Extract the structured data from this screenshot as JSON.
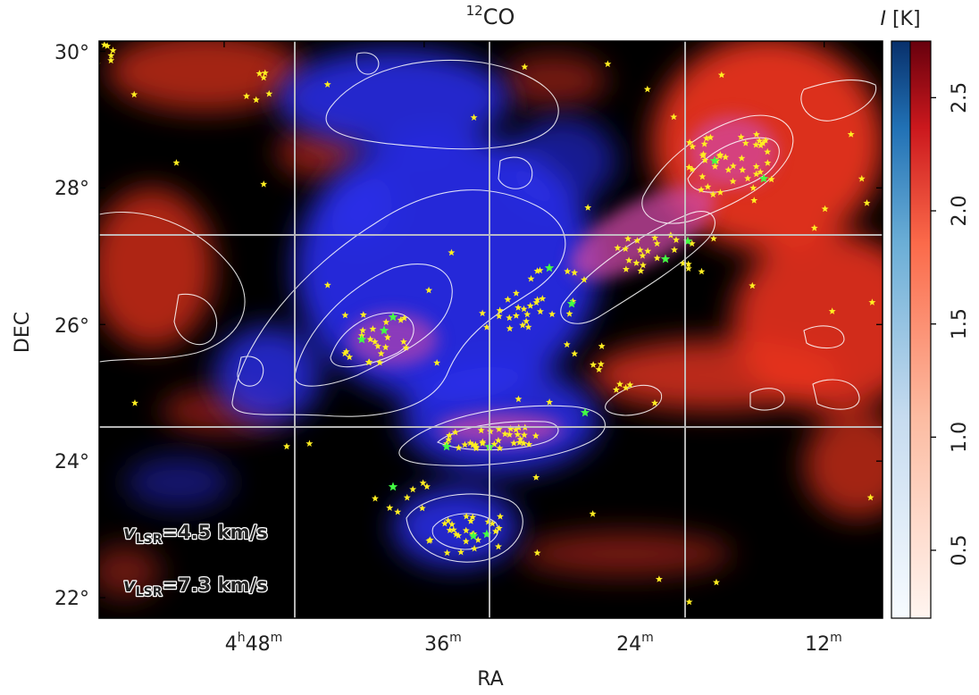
{
  "chart_data": {
    "type": "heatmap",
    "title_sup": "12",
    "title": "CO",
    "xlabel": "RA",
    "ylabel": "DEC",
    "x_ticks": [
      {
        "label": "4",
        "sup1": "h",
        "label2": "48",
        "sup2": "m",
        "ra_min": 48
      },
      {
        "label": "36",
        "sup1": "",
        "label2": "",
        "sup2": "m",
        "ra_min": 36
      },
      {
        "label": "24",
        "sup1": "",
        "label2": "",
        "sup2": "m",
        "ra_min": 24
      },
      {
        "label": "12",
        "sup1": "",
        "label2": "",
        "sup2": "m",
        "ra_min": 12
      }
    ],
    "y_ticks": [
      {
        "label": "30°",
        "dec": 30
      },
      {
        "label": "28°",
        "dec": 28
      },
      {
        "label": "26°",
        "dec": 26
      },
      {
        "label": "24°",
        "dec": 24
      },
      {
        "label": "22°",
        "dec": 22
      }
    ],
    "ra_range_min": [
      55.5,
      8.5
    ],
    "dec_range": [
      21.7,
      30.15
    ],
    "grid": true,
    "colorbar": {
      "label_italic": "I",
      "label_rest": " [K]",
      "range": [
        0.2,
        2.75
      ],
      "ticks": [
        "0.5",
        "1.0",
        "1.5",
        "2.0",
        "2.5"
      ],
      "tick_values": [
        0.5,
        1.0,
        1.5,
        2.0,
        2.5
      ],
      "left_colormap": "Blues",
      "right_colormap": "Reds",
      "left_color_high": "#08306b",
      "right_color_high": "#67000d"
    },
    "series": [
      {
        "name_prefix": "v",
        "name_sub": "LSR",
        "name_suffix": "=4.5 km/s",
        "color": "#0000ff"
      },
      {
        "name_prefix": "v",
        "name_sub": "LSR",
        "name_suffix": "=7.3 km/s",
        "color": "#ff0000"
      }
    ],
    "markers": {
      "yellow": "#ffee22",
      "green": "#44ff44"
    }
  }
}
